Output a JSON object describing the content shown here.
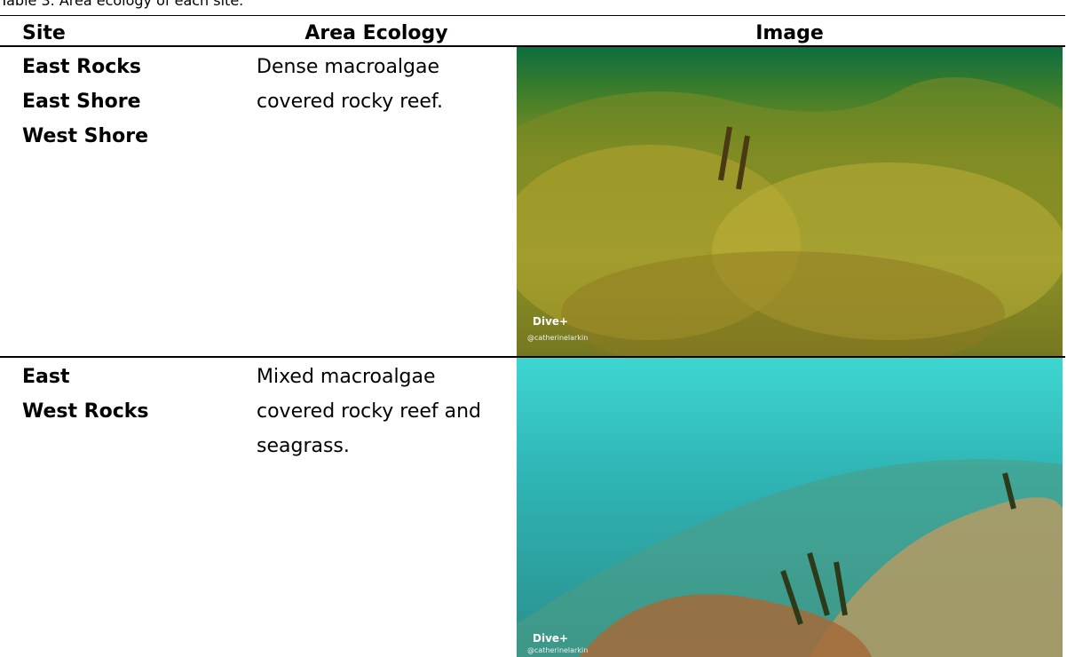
{
  "caption": "Table 3. Area ecology of each site.",
  "table": {
    "headers": [
      "Site",
      "Area Ecology",
      "Image"
    ],
    "rows": [
      {
        "sites": [
          "East Rocks",
          "East Shore",
          "West Shore"
        ],
        "ecology": "Dense macroalgae covered rocky reef.",
        "watermark": "Dive+",
        "credit": "@catherinelarkin"
      },
      {
        "sites": [
          "East",
          "West Rocks"
        ],
        "ecology": "Mixed macroalgae covered rocky reef and seagrass.",
        "watermark": "Dive+",
        "credit": "@catherinelarkin"
      }
    ]
  }
}
